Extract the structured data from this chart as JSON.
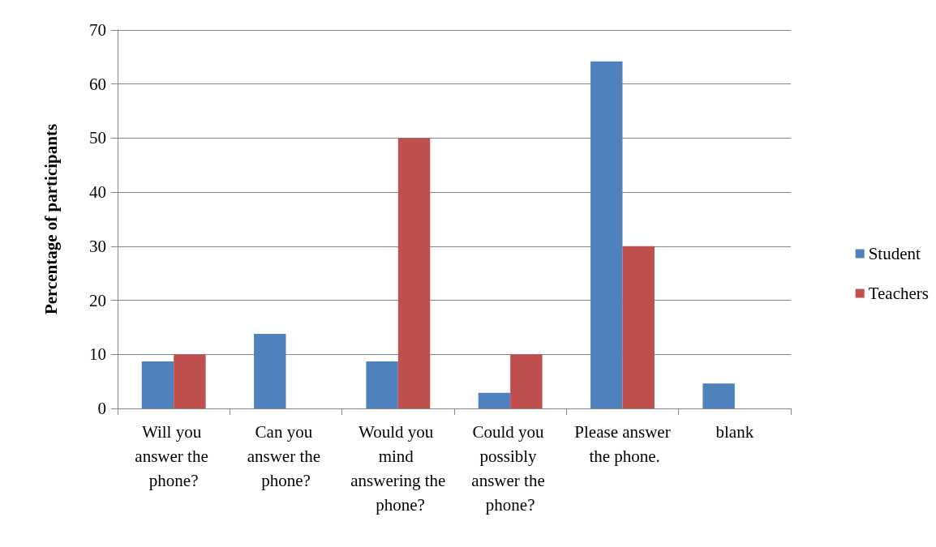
{
  "chart_data": {
    "type": "bar",
    "ylabel": "Percentage of participants",
    "categories": [
      "Will you answer the phone?",
      "Can you answer the phone?",
      "Would you mind answering the phone?",
      "Could you possibly answer the phone?",
      "Please answer the phone.",
      "blank"
    ],
    "series": [
      {
        "name": "Student",
        "color": "#4f81bd",
        "values": [
          8.7,
          13.8,
          8.7,
          2.9,
          64.2,
          4.6
        ]
      },
      {
        "name": "Teachers",
        "color": "#c0504d",
        "values": [
          10,
          0,
          50,
          10,
          30,
          0
        ]
      }
    ],
    "ylim": [
      0,
      70
    ],
    "yticks": [
      0,
      10,
      20,
      30,
      40,
      50,
      60,
      70
    ],
    "grid": "y",
    "legend": "right"
  }
}
